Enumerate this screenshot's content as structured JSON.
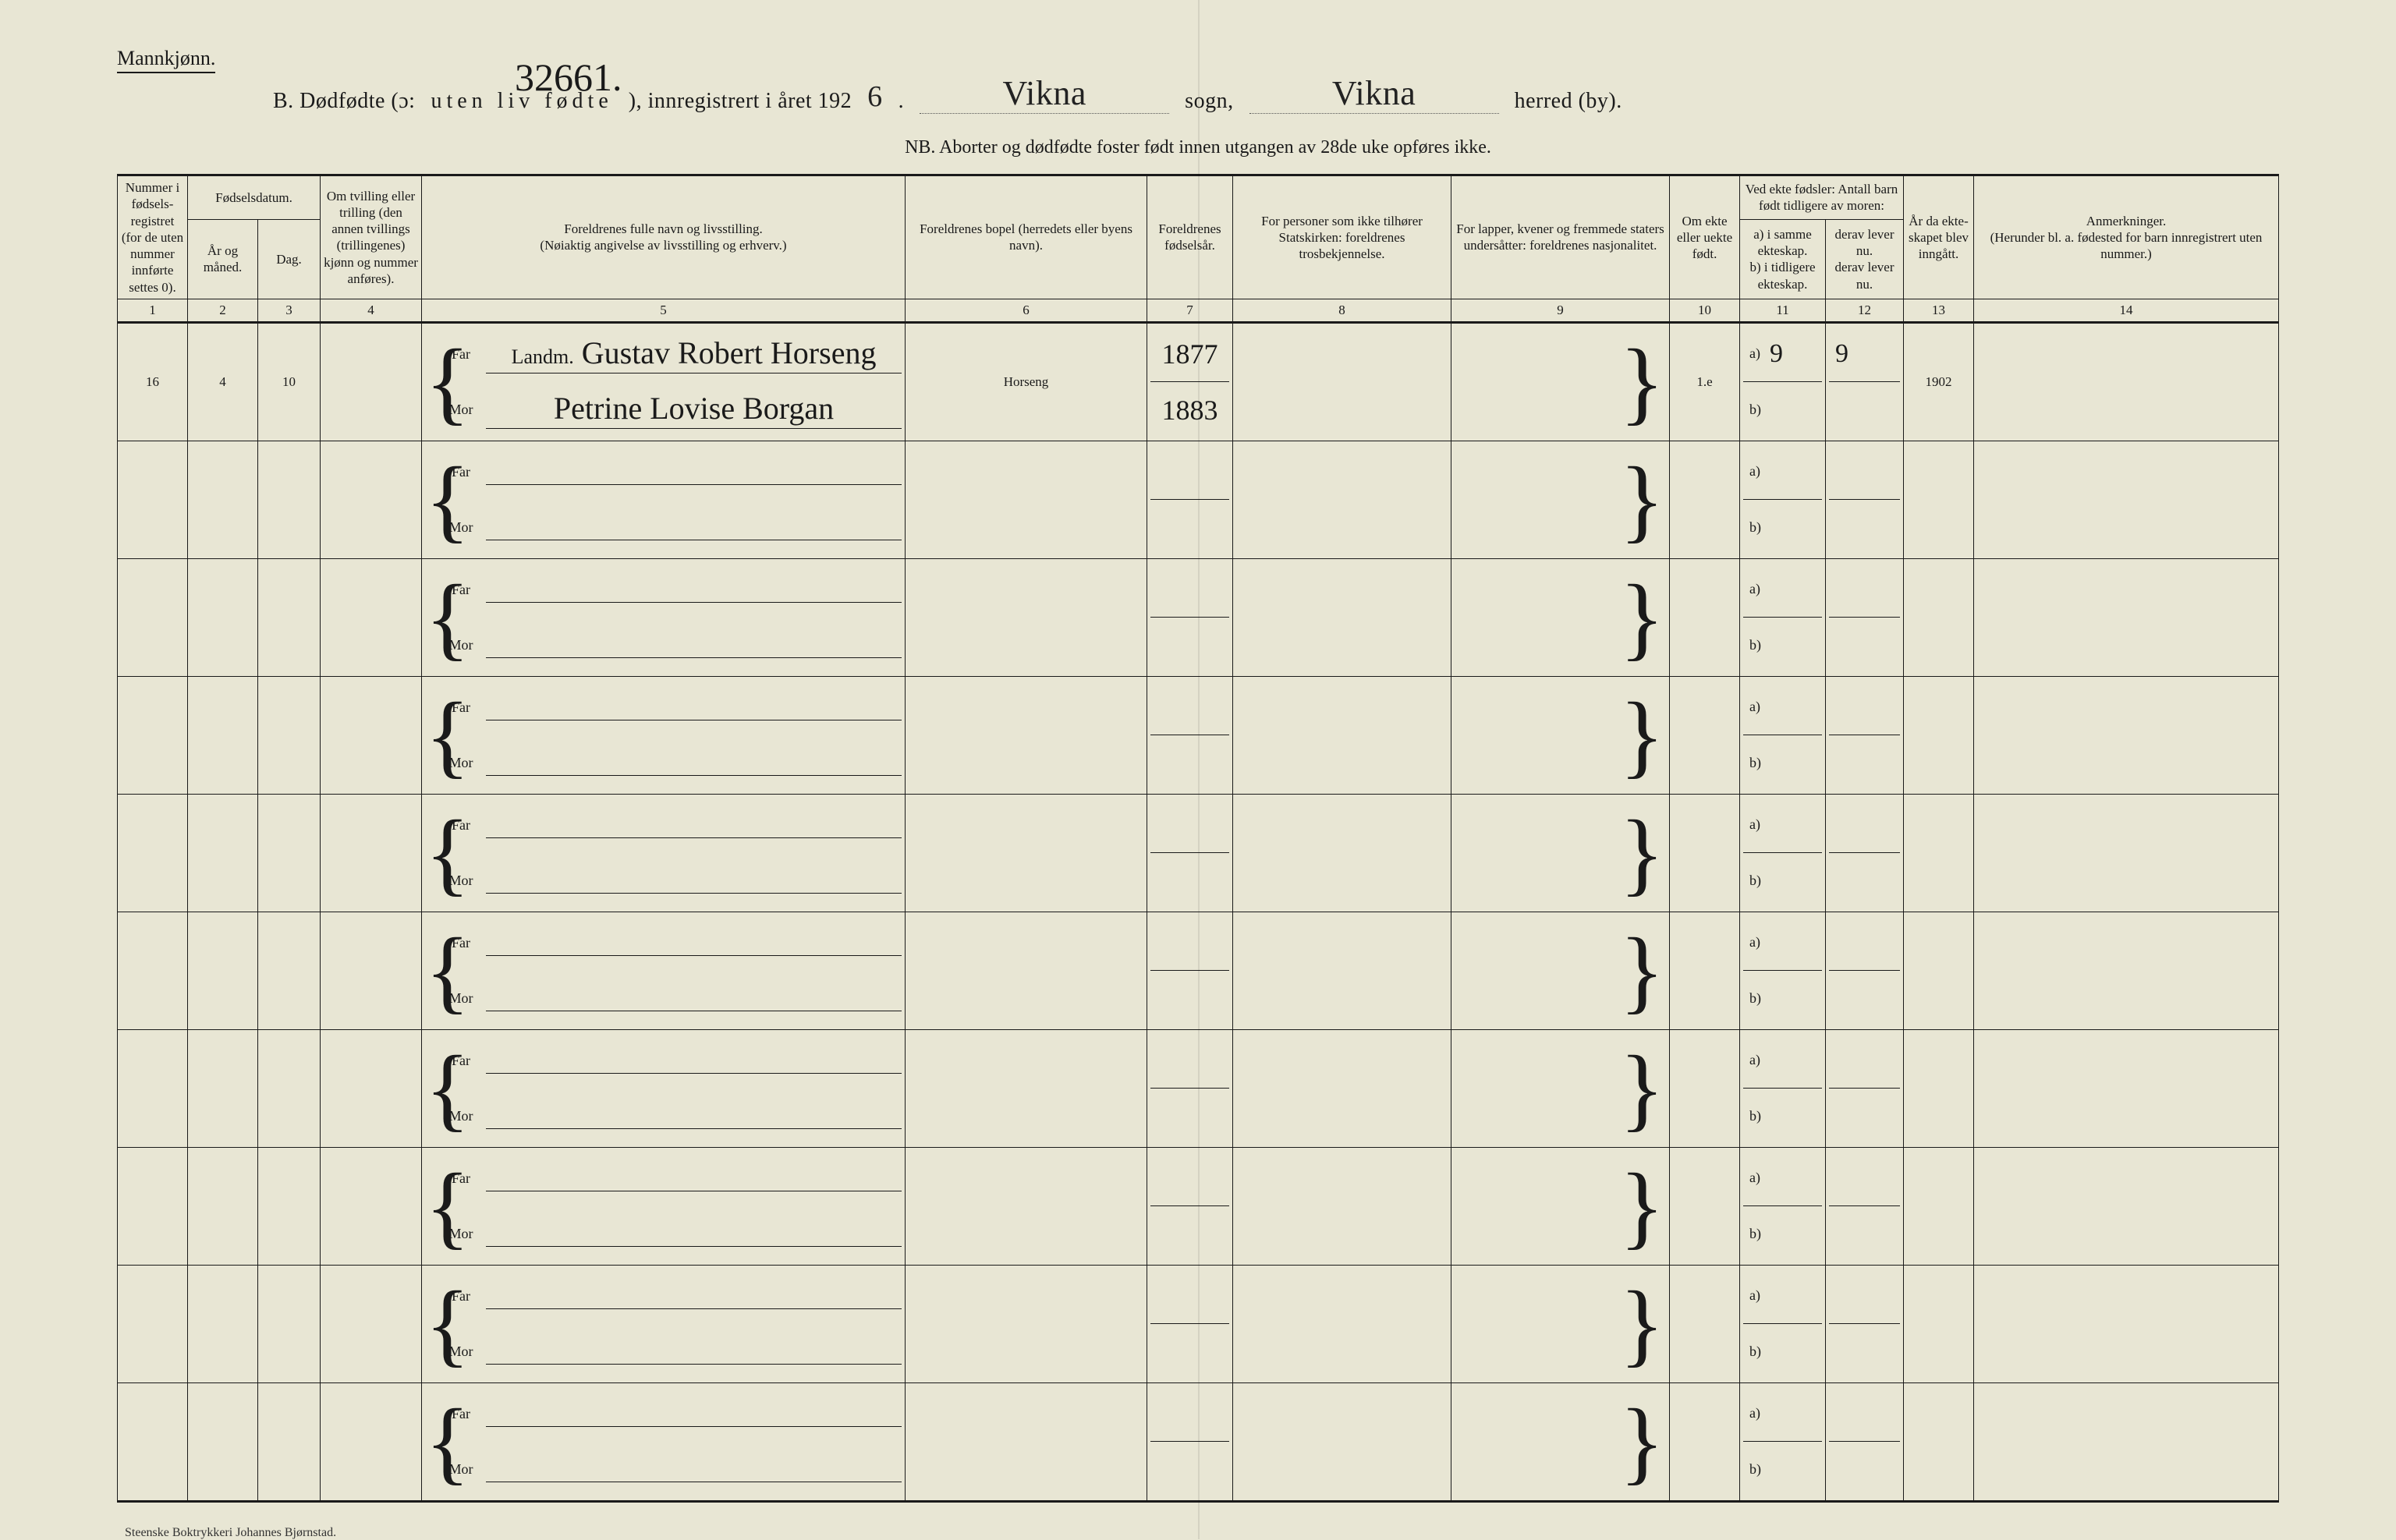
{
  "header": {
    "gender_label": "Mannkjønn.",
    "page_number_hw": "32661.",
    "title_prefix": "B.  Dødfødte (ɔ:",
    "title_spaced": "uten liv fødte",
    "title_mid": "), innregistrert i året 192",
    "year_last_digit": "6",
    "sogn_value": "Vikna",
    "sogn_label": "sogn,",
    "herred_value": "Vikna",
    "herred_label": "herred (by).",
    "nb_line": "NB.  Aborter og dødfødte foster født innen utgangen av 28de uke opføres ikke."
  },
  "columns": {
    "c1": "Nummer i fødsels­registret (for de uten nummer innførte settes 0).",
    "c2_group": "Fødselsdatum.",
    "c2": "År og måned.",
    "c3": "Dag.",
    "c4": "Om tvilling eller trilling (den annen tvillings (trillingenes) kjønn og nummer anføres).",
    "c5": "Foreldrenes fulle navn og livsstilling.\n(Nøiaktig angivelse av livsstilling og erhverv.)",
    "c6": "Foreldrenes bopel (herredets eller byens navn).",
    "c7": "For­eldrenes fødsels­år.",
    "c8": "For personer som ikke tilhører Statskirken: foreldrenes trosbekjennelse.",
    "c9": "For lapper, kvener og fremmede staters undersåtter: foreldrenes nasjonalitet.",
    "c10": "Om ekte eller uekte født.",
    "c11_12_group": "Ved ekte fødsler: Antall barn født tid­ligere av moren:",
    "c11": "a) i samme ekteskap.\nb) i tidligere ekteskap.",
    "c12": "derav lever nu.\nderav lever nu.",
    "c13": "År da ekte­skapet blev inn­gått.",
    "c14": "Anmerkninger.\n(Herunder bl. a. fødested for barn innregistrert uten nummer.)",
    "far": "Far",
    "mor": "Mor",
    "a_label": "a)",
    "b_label": "b)"
  },
  "colnums": [
    "1",
    "2",
    "3",
    "4",
    "5",
    "6",
    "7",
    "8",
    "9",
    "10",
    "11",
    "12",
    "13",
    "14"
  ],
  "rows": [
    {
      "num": "16",
      "month": "4",
      "day": "10",
      "twin": "",
      "far": "Gustav Robert Horseng",
      "far_prefix": "Landm.",
      "mor": "Petrine Lovise Borgan",
      "bopel": "Horseng",
      "far_year": "1877",
      "mor_year": "1883",
      "tros": "",
      "nasj": "",
      "ekte": "1.e",
      "a11": "9",
      "a12": "9",
      "b11": "",
      "b12": "",
      "aar": "1902",
      "anm": ""
    },
    {},
    {},
    {},
    {},
    {},
    {},
    {},
    {},
    {}
  ],
  "footer": "Steenske Boktrykkeri Johannes Bjørnstad.",
  "style": {
    "background_color": "#e8e6d4",
    "line_color": "#1a1a1a",
    "handwritten_color": "#222222",
    "print_fontsize_header": 17,
    "handwritten_fontsize": 40
  }
}
